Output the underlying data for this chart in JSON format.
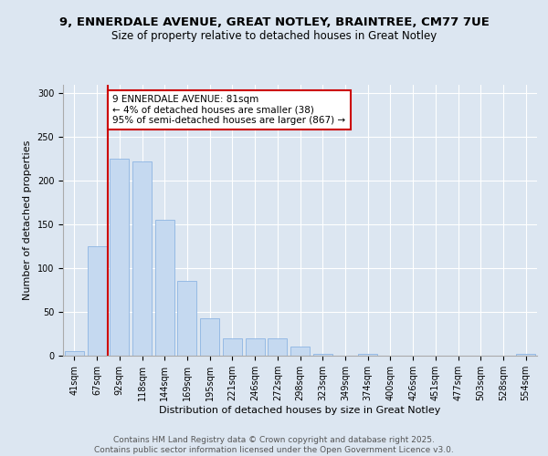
{
  "title_line1": "9, ENNERDALE AVENUE, GREAT NOTLEY, BRAINTREE, CM77 7UE",
  "title_line2": "Size of property relative to detached houses in Great Notley",
  "xlabel": "Distribution of detached houses by size in Great Notley",
  "ylabel": "Number of detached properties",
  "bar_color": "#c5d9f0",
  "bar_edgecolor": "#8db4e2",
  "background_color": "#dce6f1",
  "plot_bg_color": "#dce6f1",
  "categories": [
    "41sqm",
    "67sqm",
    "92sqm",
    "118sqm",
    "144sqm",
    "169sqm",
    "195sqm",
    "221sqm",
    "246sqm",
    "272sqm",
    "298sqm",
    "323sqm",
    "349sqm",
    "374sqm",
    "400sqm",
    "426sqm",
    "451sqm",
    "477sqm",
    "503sqm",
    "528sqm",
    "554sqm"
  ],
  "values": [
    5,
    125,
    225,
    222,
    155,
    85,
    43,
    20,
    20,
    20,
    10,
    2,
    0,
    2,
    0,
    0,
    0,
    0,
    0,
    0,
    2
  ],
  "ylim": [
    0,
    310
  ],
  "yticks": [
    0,
    50,
    100,
    150,
    200,
    250,
    300
  ],
  "red_line_x": 1.5,
  "annotation_text": "9 ENNERDALE AVENUE: 81sqm\n← 4% of detached houses are smaller (38)\n95% of semi-detached houses are larger (867) →",
  "annotation_box_color": "#ffffff",
  "annotation_box_edgecolor": "#cc0000",
  "red_line_color": "#cc0000",
  "footer_text": "Contains HM Land Registry data © Crown copyright and database right 2025.\nContains public sector information licensed under the Open Government Licence v3.0.",
  "title_fontsize": 9.5,
  "subtitle_fontsize": 8.5,
  "axis_label_fontsize": 8,
  "tick_fontsize": 7,
  "annotation_fontsize": 7.5,
  "footer_fontsize": 6.5
}
